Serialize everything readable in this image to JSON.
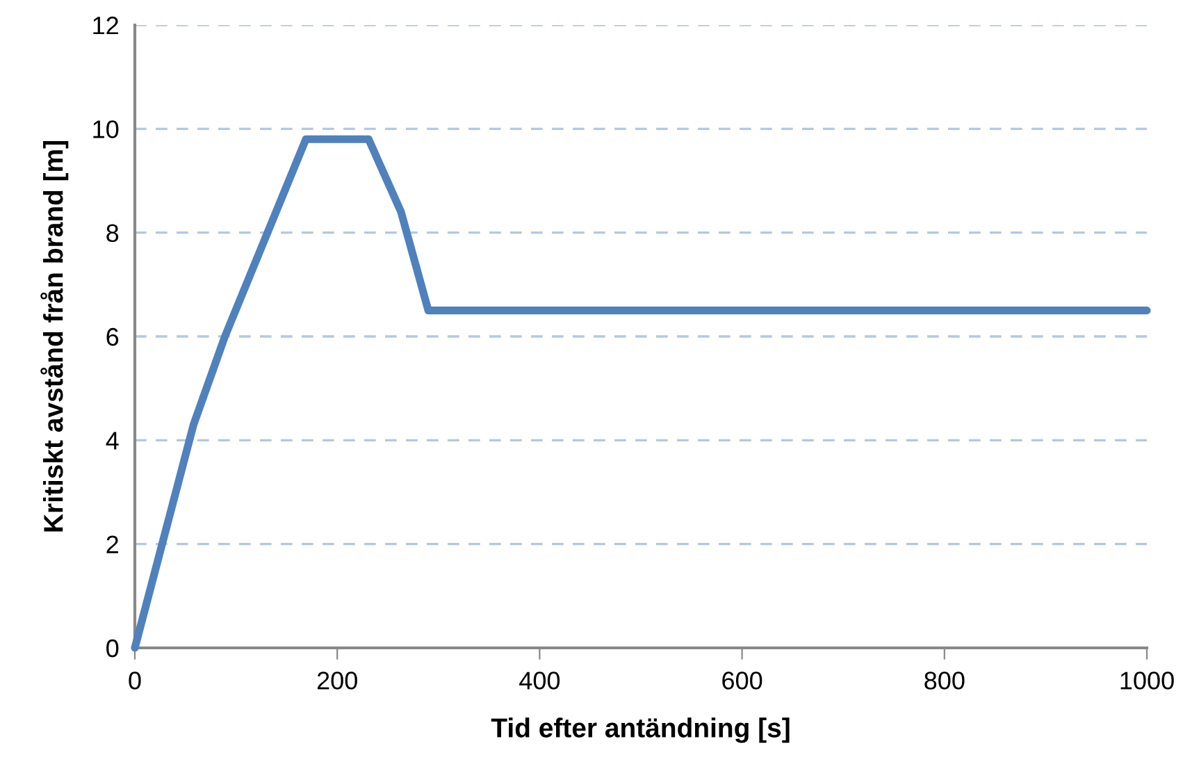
{
  "chart_data": {
    "type": "line",
    "xlabel": "Tid efter antändning [s]",
    "ylabel": "Kritiskt avstånd från brand [m]",
    "x": [
      0,
      58,
      89,
      169,
      231,
      263,
      290,
      1000
    ],
    "series": [
      {
        "color": "#4f81bd",
        "values": [
          0,
          4.3,
          6.0,
          9.8,
          9.8,
          8.4,
          6.5,
          6.5
        ]
      }
    ],
    "xlim": [
      0,
      1000
    ],
    "xticks": [
      0,
      200,
      400,
      600,
      800,
      1000
    ],
    "ylim": [
      0,
      12
    ],
    "yticks": [
      0,
      2,
      4,
      6,
      8,
      10,
      12
    ],
    "grid": "y",
    "legend": false,
    "marker": "none",
    "line_style": "solid"
  }
}
